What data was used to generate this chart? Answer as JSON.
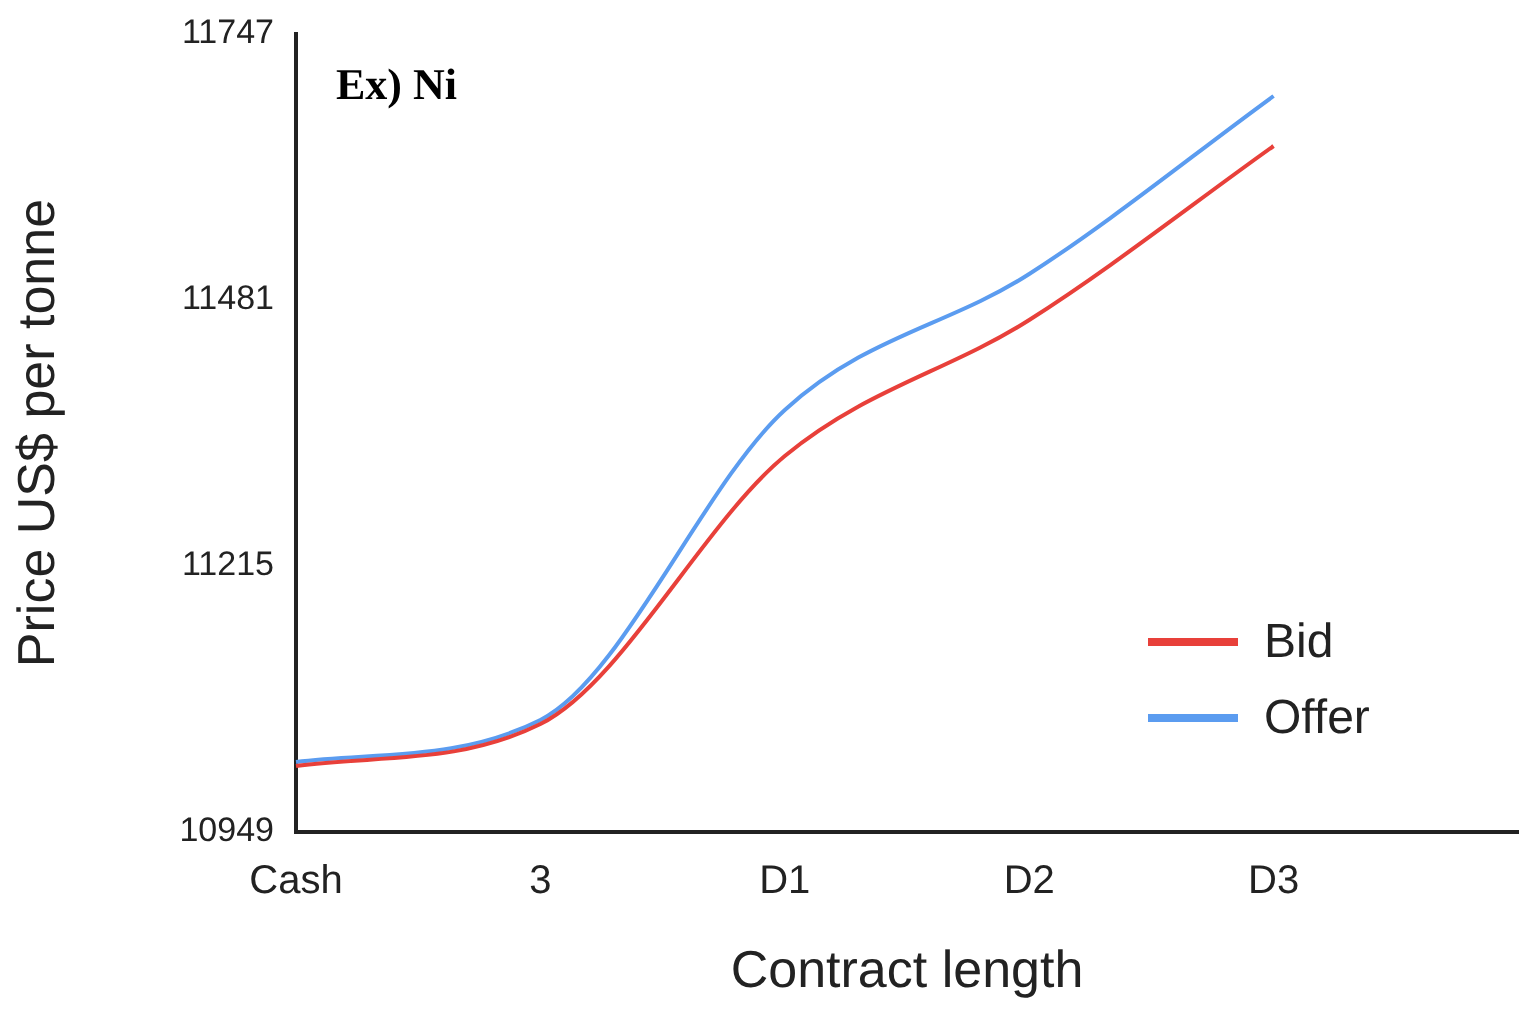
{
  "chart_data": {
    "type": "line",
    "title": "Ex) Ni",
    "xlabel": "Contract length",
    "ylabel": "Price US$ per tonne",
    "categories": [
      "Cash",
      "3",
      "D1",
      "D2",
      "D3",
      null
    ],
    "series": [
      {
        "name": "Bid",
        "color": "#e8403a",
        "values": [
          11015,
          11057,
          11325,
          11461,
          11635,
          null
        ]
      },
      {
        "name": "Offer",
        "color": "#5b9cf0",
        "values": [
          11019,
          11061,
          11371,
          11507,
          11685,
          null
        ]
      }
    ],
    "ylim": [
      10949,
      11747
    ],
    "yticks": [
      10949,
      11215,
      11481,
      11747
    ],
    "grid": false,
    "legend": "bottom right",
    "marker": "none",
    "line_style": "solid"
  }
}
